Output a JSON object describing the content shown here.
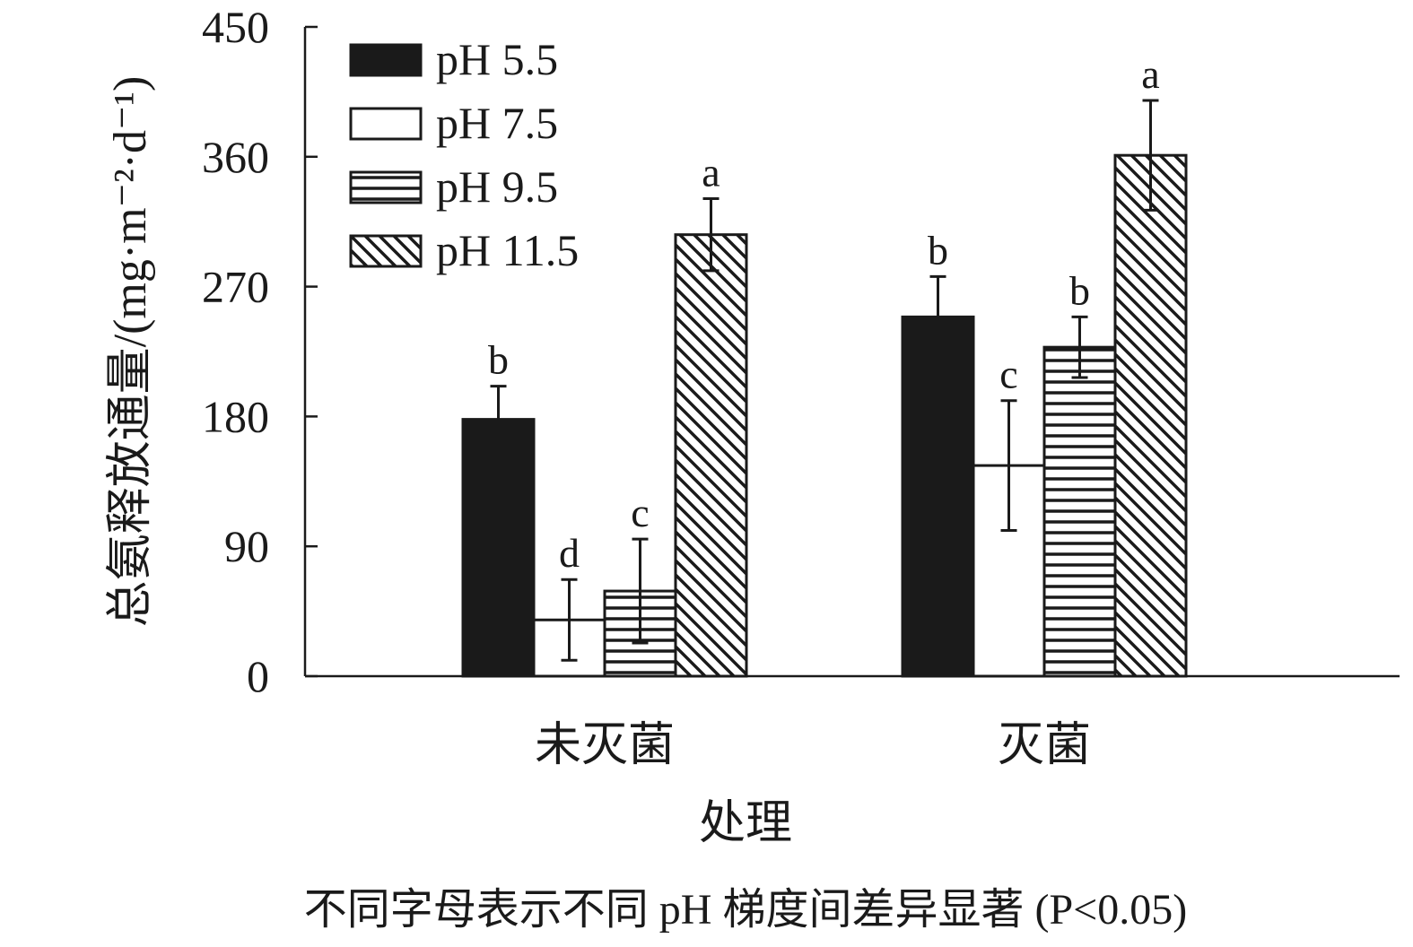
{
  "chart_data": {
    "type": "bar",
    "xlabel": "处理",
    "ylabel": "总氨释放通量/(mg·m⁻²·d⁻¹)",
    "ylim": [
      0,
      450
    ],
    "yticks": [
      0,
      90,
      180,
      270,
      360,
      450
    ],
    "categories": [
      "未灭菌",
      "灭菌"
    ],
    "legend_position": "top-left",
    "grid": false,
    "series": [
      {
        "name": "pH 5.5",
        "pattern": "solid",
        "values": [
          178,
          249
        ],
        "errors": [
          23,
          28
        ],
        "letters": [
          "b",
          "b"
        ]
      },
      {
        "name": "pH 7.5",
        "pattern": "empty",
        "values": [
          39,
          146
        ],
        "errors": [
          28,
          45
        ],
        "letters": [
          "d",
          "c"
        ]
      },
      {
        "name": "pH 9.5",
        "pattern": "horizontal",
        "values": [
          59,
          228
        ],
        "errors": [
          36,
          21
        ],
        "letters": [
          "c",
          "b"
        ]
      },
      {
        "name": "pH 11.5",
        "pattern": "diagonal",
        "values": [
          306,
          361
        ],
        "errors": [
          25,
          38
        ],
        "letters": [
          "a",
          "a"
        ]
      }
    ],
    "note": "不同字母表示不同 pH 梯度间差异显著 (P<0.05)"
  },
  "colors": {
    "ink": "#1a1a1a",
    "background": "#ffffff"
  }
}
